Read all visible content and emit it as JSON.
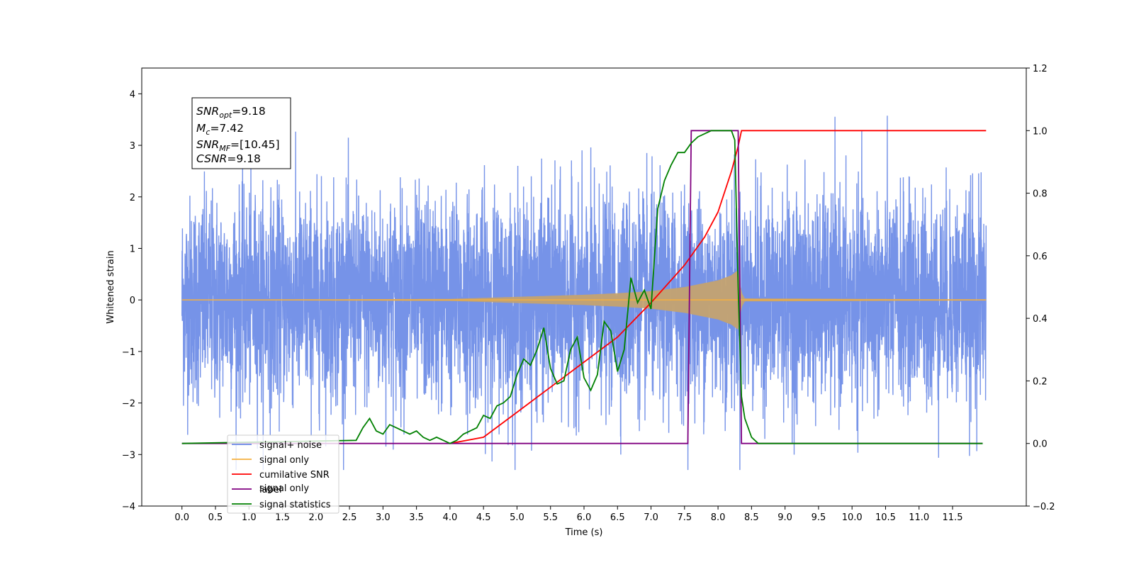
{
  "chart_data": {
    "type": "line",
    "xlabel": "Time (s)",
    "ylabel": "Whitened strain",
    "xlim": [
      -0.6,
      12.6
    ],
    "ylim": [
      -4,
      4.5
    ],
    "y2lim": [
      -0.2,
      1.2
    ],
    "x_ticks": [
      "0.0",
      "0.5",
      "1.0",
      "1.5",
      "2.0",
      "2.5",
      "3.0",
      "3.5",
      "4.0",
      "4.5",
      "5.0",
      "5.5",
      "6.0",
      "6.5",
      "7.0",
      "7.5",
      "8.0",
      "8.5",
      "9.0",
      "9.5",
      "10.0",
      "10.5",
      "11.0",
      "11.5"
    ],
    "y_ticks": [
      "4",
      "3",
      "2",
      "1",
      "0",
      "−1",
      "−2",
      "−3",
      "−4"
    ],
    "y2_ticks": [
      "1.2",
      "1.0",
      "0.8",
      "0.6",
      "0.4",
      "0.2",
      "0.0",
      "−0.2"
    ],
    "grid": false,
    "legend_position": "lower-left",
    "info_box": {
      "line1": "SNR",
      "line1_sub": "opt",
      "line1_val": "=9.18",
      "line2": "M",
      "line2_sub": "c",
      "line2_val": "=7.42",
      "line3": "SNR",
      "line3_sub": "MF",
      "line3_val": "=[10.45]",
      "line4": "CSNR",
      "line4_val": "=9.18"
    },
    "series": [
      {
        "name": "signal+ noise",
        "color": "#6a8ae6",
        "axis": "left",
        "noise_sigma": 1.05,
        "x_range": [
          0,
          12
        ]
      },
      {
        "name": "signal only",
        "color": "#f5b041",
        "axis": "left",
        "fill_color": "#c4a270",
        "envelope": {
          "x": [
            0,
            4.0,
            4.5,
            5.0,
            5.5,
            6.0,
            6.5,
            7.0,
            7.5,
            8.0,
            8.2,
            8.3,
            8.35,
            8.4,
            12
          ],
          "y": [
            0.005,
            0.02,
            0.04,
            0.06,
            0.08,
            0.1,
            0.13,
            0.17,
            0.25,
            0.38,
            0.48,
            0.58,
            0.15,
            0.03,
            0.01
          ]
        }
      },
      {
        "name": "cumilative SNR",
        "color": "#ff0000",
        "axis": "right",
        "x": [
          4.0,
          4.5,
          5.0,
          5.5,
          6.0,
          6.5,
          7.0,
          7.5,
          7.8,
          8.0,
          8.2,
          8.3,
          8.35,
          12.0
        ],
        "y": [
          0.0,
          0.02,
          0.1,
          0.18,
          0.26,
          0.34,
          0.45,
          0.57,
          0.66,
          0.74,
          0.87,
          0.95,
          1.0,
          1.0
        ]
      },
      {
        "name": "label",
        "color": "#800080",
        "axis": "right",
        "x": [
          0.0,
          7.55,
          7.6,
          8.3,
          8.35,
          11.95
        ],
        "y": [
          0.0,
          0.0,
          1.0,
          1.0,
          0.0,
          0.0
        ]
      },
      {
        "name": "signal only",
        "color": "#c8c8c8",
        "axis": "right",
        "hidden_line": true
      },
      {
        "name": "signal statistics",
        "color": "#008000",
        "axis": "right",
        "x": [
          0.0,
          2.6,
          2.7,
          2.8,
          2.9,
          3.0,
          3.1,
          3.2,
          3.3,
          3.4,
          3.5,
          3.6,
          3.7,
          3.8,
          3.9,
          4.0,
          4.1,
          4.2,
          4.3,
          4.4,
          4.5,
          4.6,
          4.7,
          4.8,
          4.9,
          5.0,
          5.1,
          5.2,
          5.3,
          5.4,
          5.5,
          5.6,
          5.7,
          5.8,
          5.9,
          6.0,
          6.1,
          6.2,
          6.3,
          6.4,
          6.5,
          6.6,
          6.7,
          6.8,
          6.9,
          7.0,
          7.1,
          7.2,
          7.3,
          7.4,
          7.5,
          7.6,
          7.7,
          7.8,
          7.9,
          8.0,
          8.1,
          8.2,
          8.25,
          8.3,
          8.35,
          8.4,
          8.5,
          8.6,
          11.95
        ],
        "y": [
          0.0,
          0.01,
          0.05,
          0.08,
          0.04,
          0.03,
          0.06,
          0.05,
          0.04,
          0.03,
          0.04,
          0.02,
          0.01,
          0.02,
          0.01,
          0.0,
          0.01,
          0.03,
          0.04,
          0.05,
          0.09,
          0.08,
          0.12,
          0.13,
          0.15,
          0.22,
          0.27,
          0.25,
          0.3,
          0.37,
          0.24,
          0.19,
          0.2,
          0.3,
          0.34,
          0.21,
          0.17,
          0.22,
          0.39,
          0.36,
          0.23,
          0.3,
          0.53,
          0.45,
          0.49,
          0.43,
          0.75,
          0.84,
          0.89,
          0.93,
          0.93,
          0.96,
          0.98,
          0.99,
          1.0,
          1.0,
          1.0,
          1.0,
          0.97,
          0.5,
          0.15,
          0.08,
          0.02,
          0.0,
          0.0
        ]
      }
    ],
    "legend": [
      {
        "label": "signal+ noise",
        "color": "#6a8ae6"
      },
      {
        "label": "signal only",
        "color": "#f5b041"
      },
      {
        "label": "cumilative SNR",
        "color": "#ff0000"
      },
      {
        "label": "label",
        "color": "#800080"
      },
      {
        "label": "signal statistics",
        "color": "#008000"
      }
    ],
    "legend_overlap_text": "signal only"
  }
}
